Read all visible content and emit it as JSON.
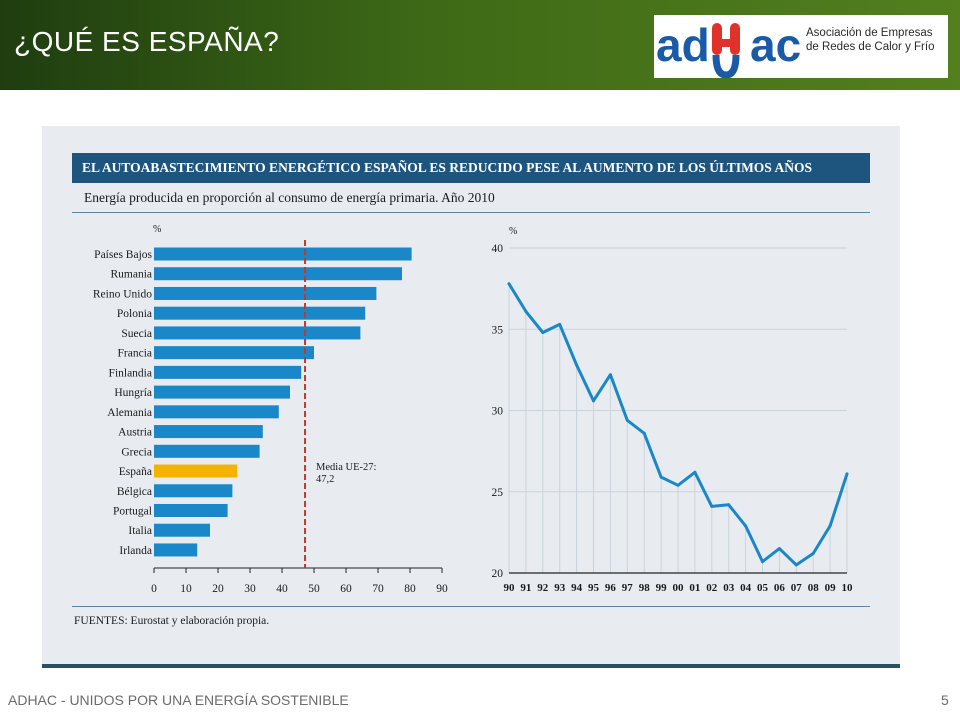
{
  "slide": {
    "title": "¿QUÉ ES ESPAÑA?",
    "footer": "ADHAC - UNIDOS POR UNA ENERGÍA SOSTENIBLE",
    "page_number": "5"
  },
  "logo": {
    "wordmark": "adhac",
    "line1": "Asociación de Empresas",
    "line2": "de Redes de Calor y Frío"
  },
  "figure": {
    "title": "EL AUTOABASTECIMIENTO ENERGÉTICO ESPAÑOL ES REDUCIDO PESE AL AUMENTO DE LOS ÚLTIMOS AÑOS",
    "subtitle": "Energía producida en proporción al consumo de energía primaria. Año 2010",
    "source": "FUENTES: Eurostat y elaboración propia."
  },
  "colors": {
    "bar": "#1a87c8",
    "highlight": "#f5b300",
    "mean_line": "#c0392b",
    "line": "#1a87c8",
    "grid": "#c9d3dc",
    "title_bar": "#1d557f"
  },
  "chart_data": [
    {
      "type": "bar",
      "orientation": "horizontal",
      "categories": [
        "Países Bajos",
        "Rumania",
        "Reino Unido",
        "Polonia",
        "Suecia",
        "Francia",
        "Finlandia",
        "Hungría",
        "Alemania",
        "Austria",
        "Grecia",
        "España",
        "Bélgica",
        "Portugal",
        "Italia",
        "Irlanda"
      ],
      "values": [
        80.5,
        77.5,
        69.5,
        66,
        64.5,
        50,
        46,
        42.5,
        39,
        34,
        33,
        26,
        24.5,
        23,
        17.5,
        13.5
      ],
      "highlight": "España",
      "xlim": [
        0,
        90
      ],
      "xticks": [
        "0",
        "10",
        "20",
        "30",
        "40",
        "50",
        "60",
        "70",
        "80",
        "90"
      ],
      "unit": "%",
      "reference_line": {
        "value": 47.2,
        "label_line1": "Media UE-27:",
        "label_line2": "47,2"
      }
    },
    {
      "type": "line",
      "x": [
        "90",
        "91",
        "92",
        "93",
        "94",
        "95",
        "96",
        "97",
        "98",
        "99",
        "00",
        "01",
        "02",
        "03",
        "04",
        "05",
        "06",
        "07",
        "08",
        "09",
        "10"
      ],
      "series": [
        {
          "values": [
            37.8,
            36.1,
            34.8,
            35.3,
            32.8,
            30.6,
            32.2,
            29.4,
            28.6,
            25.9,
            25.4,
            26.2,
            24.1,
            24.2,
            22.9,
            20.7,
            21.5,
            20.5,
            21.2,
            22.9,
            26.1
          ]
        }
      ],
      "ylim": [
        20,
        40
      ],
      "yticks": [
        "20",
        "25",
        "30",
        "35",
        "40"
      ],
      "unit": "%"
    }
  ]
}
